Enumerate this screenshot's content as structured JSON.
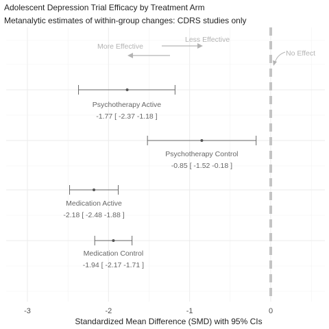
{
  "chart_data": {
    "type": "forest",
    "title": "Adolescent Depression Trial Efficacy by Treatment Arm",
    "subtitle": "Metanalytic estimates of within-group changes: CDRS studies only",
    "xlabel": "Standardized Mean Difference (SMD) with 95% CIs",
    "xlim": [
      -3.2,
      0.5
    ],
    "x_ticks": [
      -3,
      -2,
      -1,
      0
    ],
    "grid": true,
    "reference_line": {
      "x": 0,
      "label": "No Effect",
      "style": "dashed"
    },
    "direction_annotations": {
      "more": "More Effective",
      "less": "Less Effective"
    },
    "rows": [
      {
        "name": "Psychotherapy Active",
        "estimate": -1.77,
        "lower": -2.37,
        "upper": -1.18,
        "ci_text": "-1.77 [ -2.37 -1.18 ]"
      },
      {
        "name": "Psychotherapy Control",
        "estimate": -0.85,
        "lower": -1.52,
        "upper": -0.18,
        "ci_text": "-0.85 [ -1.52 -0.18 ]"
      },
      {
        "name": "Medication Active",
        "estimate": -2.18,
        "lower": -2.48,
        "upper": -1.88,
        "ci_text": "-2.18 [ -2.48 -1.88 ]"
      },
      {
        "name": "Medication Control",
        "estimate": -1.94,
        "lower": -2.17,
        "upper": -1.71,
        "ci_text": "-1.94 [ -2.17 -1.71 ]"
      }
    ]
  }
}
